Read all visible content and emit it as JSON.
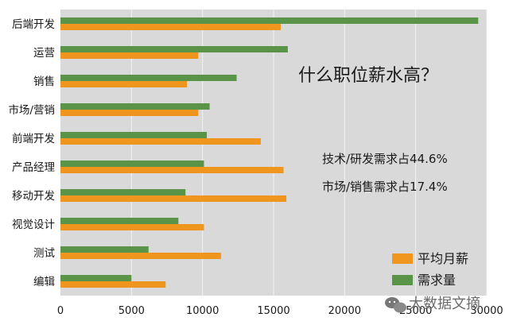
{
  "chart_data": {
    "type": "bar",
    "orientation": "horizontal",
    "title": "什么职位薪水高？",
    "annotations": [
      "技术/研发需求占44.6%",
      "市场/销售需求占17.4%"
    ],
    "categories": [
      "后端开发",
      "运营",
      "销售",
      "市场/营销",
      "前端开发",
      "产品经理",
      "移动开发",
      "视觉设计",
      "测试",
      "编辑"
    ],
    "series": [
      {
        "name": "需求量",
        "color": "#5a9449",
        "values": [
          29400,
          16000,
          12400,
          10500,
          10300,
          10100,
          8800,
          8300,
          6200,
          5000
        ]
      },
      {
        "name": "平均月薪",
        "color": "#f0961f",
        "values": [
          15500,
          9700,
          8900,
          9700,
          14100,
          15700,
          15900,
          10100,
          11300,
          7400
        ]
      }
    ],
    "xlim": [
      0,
      30000
    ],
    "xticks": [
      "0",
      "5000",
      "10000",
      "15000",
      "20000",
      "25000",
      "30000"
    ],
    "grid": true,
    "legend": {
      "position": "bottom-right",
      "entries": [
        "平均月薪",
        "需求量"
      ]
    },
    "watermark": "大数据文摘"
  },
  "colors": {
    "background": "#ffffff",
    "plot_background": "#d9d9d9",
    "grid": "#f2f2f2"
  }
}
